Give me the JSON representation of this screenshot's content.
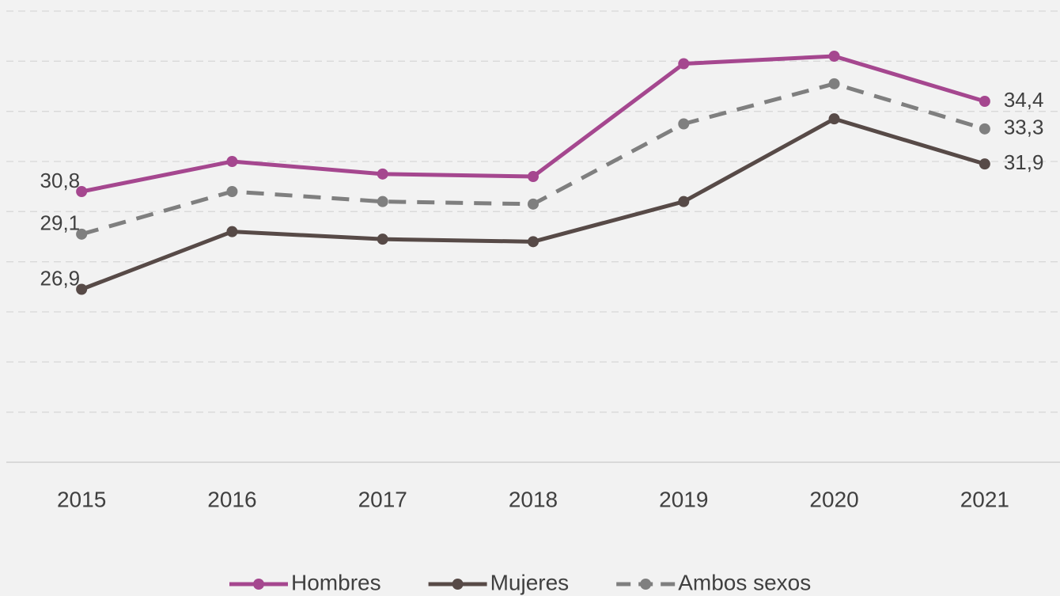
{
  "chart_data": {
    "type": "line",
    "categories": [
      "2015",
      "2016",
      "2017",
      "2018",
      "2019",
      "2020",
      "2021"
    ],
    "series": [
      {
        "name": "Hombres",
        "color": "#a5478f",
        "dashed": false,
        "values": [
          30.8,
          32.0,
          31.5,
          31.4,
          35.9,
          36.2,
          34.4
        ],
        "value_labels": [
          "30,8",
          null,
          null,
          null,
          null,
          null,
          "34,4"
        ]
      },
      {
        "name": "Mujeres",
        "color": "#574a47",
        "dashed": false,
        "values": [
          26.9,
          29.2,
          28.9,
          28.8,
          30.4,
          33.7,
          31.9
        ],
        "value_labels": [
          "26,9",
          null,
          null,
          null,
          null,
          null,
          "31,9"
        ]
      },
      {
        "name": "Ambos sexos",
        "color": "#7f7f7f",
        "dashed": true,
        "values": [
          29.1,
          30.8,
          30.4,
          30.3,
          33.5,
          35.1,
          33.3
        ],
        "value_labels": [
          "29,1",
          null,
          null,
          null,
          null,
          null,
          "33,3"
        ]
      }
    ],
    "ylim": [
      20,
      38
    ],
    "yticks": [
      20,
      22,
      24,
      26,
      28,
      30,
      32,
      34,
      36,
      38
    ],
    "grid": true,
    "legend": "bottom"
  }
}
